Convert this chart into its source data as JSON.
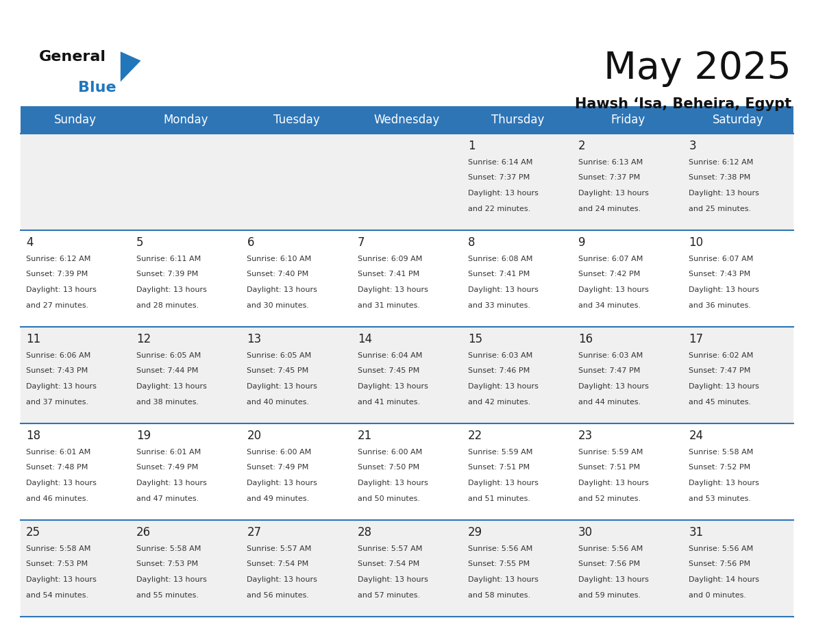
{
  "title": "May 2025",
  "subtitle": "Hawsh ‘Isa, Beheira, Egypt",
  "header_bg": "#2E75B6",
  "header_text_color": "#FFFFFF",
  "days_of_week": [
    "Sunday",
    "Monday",
    "Tuesday",
    "Wednesday",
    "Thursday",
    "Friday",
    "Saturday"
  ],
  "bg_color": "#FFFFFF",
  "row_alt_color": "#F0F0F0",
  "cell_text_color": "#333333",
  "grid_line_color": "#2E75B6",
  "day_number_color": "#222222",
  "logo_black": "#111111",
  "logo_blue": "#2277BB",
  "title_color": "#111111",
  "subtitle_color": "#111111",
  "calendar_data": [
    [
      null,
      null,
      null,
      null,
      {
        "day": 1,
        "sunrise": "6:14 AM",
        "sunset": "7:37 PM",
        "daylight": "13 hours and 22 minutes"
      },
      {
        "day": 2,
        "sunrise": "6:13 AM",
        "sunset": "7:37 PM",
        "daylight": "13 hours and 24 minutes"
      },
      {
        "day": 3,
        "sunrise": "6:12 AM",
        "sunset": "7:38 PM",
        "daylight": "13 hours and 25 minutes"
      }
    ],
    [
      {
        "day": 4,
        "sunrise": "6:12 AM",
        "sunset": "7:39 PM",
        "daylight": "13 hours and 27 minutes"
      },
      {
        "day": 5,
        "sunrise": "6:11 AM",
        "sunset": "7:39 PM",
        "daylight": "13 hours and 28 minutes"
      },
      {
        "day": 6,
        "sunrise": "6:10 AM",
        "sunset": "7:40 PM",
        "daylight": "13 hours and 30 minutes"
      },
      {
        "day": 7,
        "sunrise": "6:09 AM",
        "sunset": "7:41 PM",
        "daylight": "13 hours and 31 minutes"
      },
      {
        "day": 8,
        "sunrise": "6:08 AM",
        "sunset": "7:41 PM",
        "daylight": "13 hours and 33 minutes"
      },
      {
        "day": 9,
        "sunrise": "6:07 AM",
        "sunset": "7:42 PM",
        "daylight": "13 hours and 34 minutes"
      },
      {
        "day": 10,
        "sunrise": "6:07 AM",
        "sunset": "7:43 PM",
        "daylight": "13 hours and 36 minutes"
      }
    ],
    [
      {
        "day": 11,
        "sunrise": "6:06 AM",
        "sunset": "7:43 PM",
        "daylight": "13 hours and 37 minutes"
      },
      {
        "day": 12,
        "sunrise": "6:05 AM",
        "sunset": "7:44 PM",
        "daylight": "13 hours and 38 minutes"
      },
      {
        "day": 13,
        "sunrise": "6:05 AM",
        "sunset": "7:45 PM",
        "daylight": "13 hours and 40 minutes"
      },
      {
        "day": 14,
        "sunrise": "6:04 AM",
        "sunset": "7:45 PM",
        "daylight": "13 hours and 41 minutes"
      },
      {
        "day": 15,
        "sunrise": "6:03 AM",
        "sunset": "7:46 PM",
        "daylight": "13 hours and 42 minutes"
      },
      {
        "day": 16,
        "sunrise": "6:03 AM",
        "sunset": "7:47 PM",
        "daylight": "13 hours and 44 minutes"
      },
      {
        "day": 17,
        "sunrise": "6:02 AM",
        "sunset": "7:47 PM",
        "daylight": "13 hours and 45 minutes"
      }
    ],
    [
      {
        "day": 18,
        "sunrise": "6:01 AM",
        "sunset": "7:48 PM",
        "daylight": "13 hours and 46 minutes"
      },
      {
        "day": 19,
        "sunrise": "6:01 AM",
        "sunset": "7:49 PM",
        "daylight": "13 hours and 47 minutes"
      },
      {
        "day": 20,
        "sunrise": "6:00 AM",
        "sunset": "7:49 PM",
        "daylight": "13 hours and 49 minutes"
      },
      {
        "day": 21,
        "sunrise": "6:00 AM",
        "sunset": "7:50 PM",
        "daylight": "13 hours and 50 minutes"
      },
      {
        "day": 22,
        "sunrise": "5:59 AM",
        "sunset": "7:51 PM",
        "daylight": "13 hours and 51 minutes"
      },
      {
        "day": 23,
        "sunrise": "5:59 AM",
        "sunset": "7:51 PM",
        "daylight": "13 hours and 52 minutes"
      },
      {
        "day": 24,
        "sunrise": "5:58 AM",
        "sunset": "7:52 PM",
        "daylight": "13 hours and 53 minutes"
      }
    ],
    [
      {
        "day": 25,
        "sunrise": "5:58 AM",
        "sunset": "7:53 PM",
        "daylight": "13 hours and 54 minutes"
      },
      {
        "day": 26,
        "sunrise": "5:58 AM",
        "sunset": "7:53 PM",
        "daylight": "13 hours and 55 minutes"
      },
      {
        "day": 27,
        "sunrise": "5:57 AM",
        "sunset": "7:54 PM",
        "daylight": "13 hours and 56 minutes"
      },
      {
        "day": 28,
        "sunrise": "5:57 AM",
        "sunset": "7:54 PM",
        "daylight": "13 hours and 57 minutes"
      },
      {
        "day": 29,
        "sunrise": "5:56 AM",
        "sunset": "7:55 PM",
        "daylight": "13 hours and 58 minutes"
      },
      {
        "day": 30,
        "sunrise": "5:56 AM",
        "sunset": "7:56 PM",
        "daylight": "13 hours and 59 minutes"
      },
      {
        "day": 31,
        "sunrise": "5:56 AM",
        "sunset": "7:56 PM",
        "daylight": "14 hours and 0 minutes"
      }
    ]
  ]
}
